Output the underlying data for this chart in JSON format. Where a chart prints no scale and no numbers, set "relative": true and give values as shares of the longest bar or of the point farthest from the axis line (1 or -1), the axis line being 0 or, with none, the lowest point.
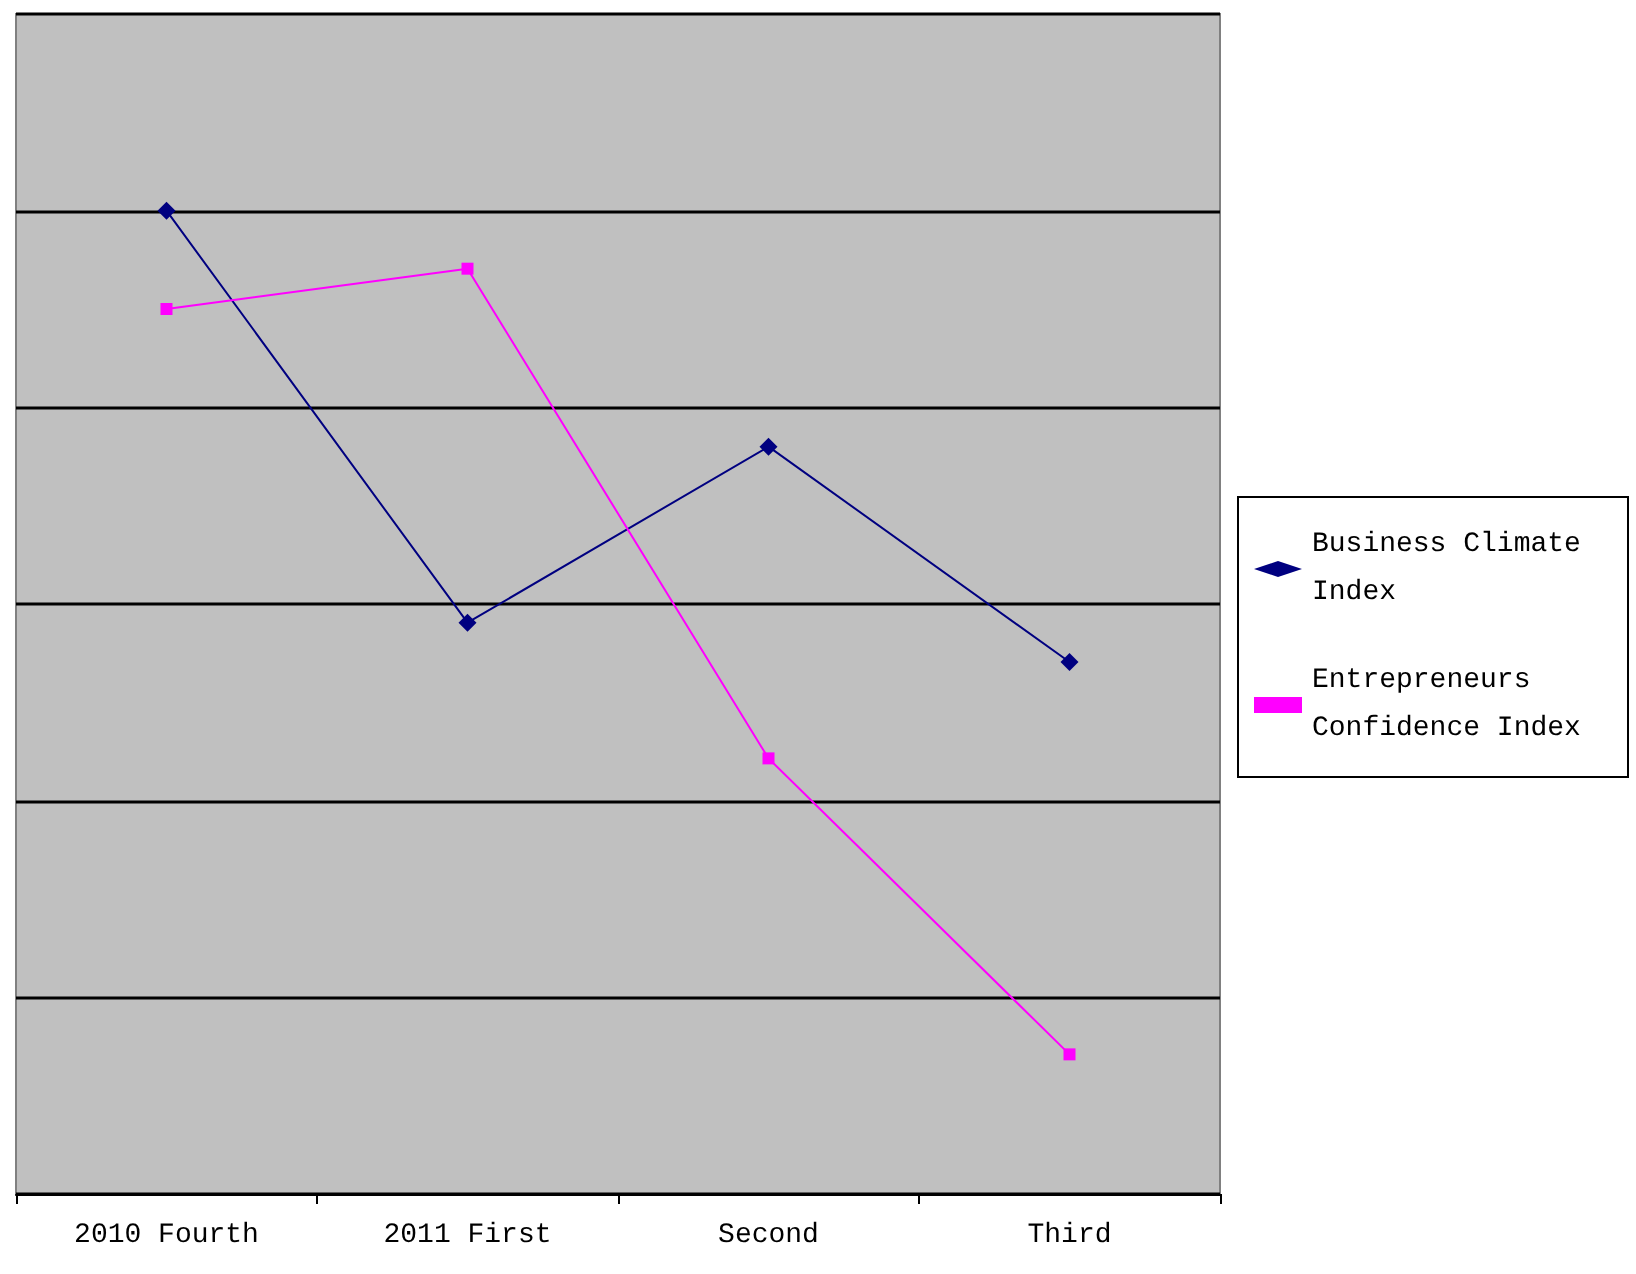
{
  "chart_data": {
    "type": "line",
    "relative": true,
    "categories": [
      "2010 Fourth",
      "2011 First",
      "Second",
      "Third"
    ],
    "series": [
      {
        "name": "Business Climate Index",
        "color": "#000080",
        "marker": "diamond",
        "values": [
          1,
          0.581,
          0.76,
          0.541
        ]
      },
      {
        "name": "Entrepreneurs Confidence Index",
        "color": "#ff00ff",
        "marker": "square",
        "values": [
          0.9,
          0.941,
          0.443,
          0.142
        ]
      }
    ],
    "grid": "y",
    "legend": "right"
  }
}
